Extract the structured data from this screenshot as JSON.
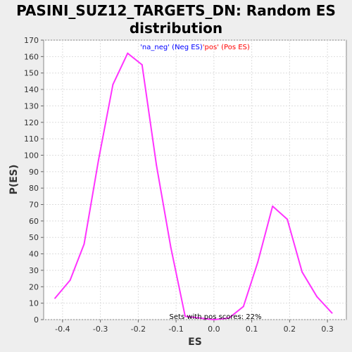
{
  "chart_data": {
    "type": "line",
    "title_lines": [
      "PASINI_SUZ12_TARGETS_DN: Random ES",
      "distribution"
    ],
    "xlabel": "ES",
    "ylabel": "P(ES)",
    "xlim": [
      -0.45,
      0.35
    ],
    "ylim": [
      0,
      170
    ],
    "x_ticks": [
      -0.4,
      -0.3,
      -0.2,
      -0.1,
      0.0,
      0.1,
      0.2,
      0.3
    ],
    "x_tick_labels": [
      "-0.4",
      "-0.3",
      "-0.2",
      "-0.1",
      "0.0",
      "0.1",
      "0.2",
      "0.3"
    ],
    "y_ticks": [
      0,
      10,
      20,
      30,
      40,
      50,
      60,
      70,
      80,
      90,
      100,
      110,
      120,
      130,
      140,
      150,
      160,
      170
    ],
    "y_tick_labels": [
      "0",
      "10",
      "20",
      "30",
      "40",
      "50",
      "60",
      "70",
      "80",
      "90",
      "100",
      "110",
      "120",
      "130",
      "140",
      "150",
      "160",
      "170"
    ],
    "grid": true,
    "legend": {
      "position": "top-center",
      "neg_label": "'na_neg' (Neg ES)",
      "pos_label": "'pos' (Pos ES)",
      "neg_color": "#0000ff",
      "pos_color": "#ff0000"
    },
    "annotation": "Sets with pos scores: 22%",
    "series": [
      {
        "color": "#ff33ff",
        "x": [
          -0.42,
          -0.38,
          -0.343,
          -0.305,
          -0.267,
          -0.228,
          -0.19,
          -0.152,
          -0.114,
          -0.076,
          -0.038,
          0.0,
          0.04,
          0.078,
          0.116,
          0.155,
          0.194,
          0.233,
          0.272,
          0.312
        ],
        "y": [
          13,
          24,
          46,
          97,
          143,
          162,
          155,
          94,
          44,
          2,
          1,
          0,
          1,
          8,
          35,
          69,
          61,
          29,
          14,
          4
        ]
      }
    ]
  }
}
